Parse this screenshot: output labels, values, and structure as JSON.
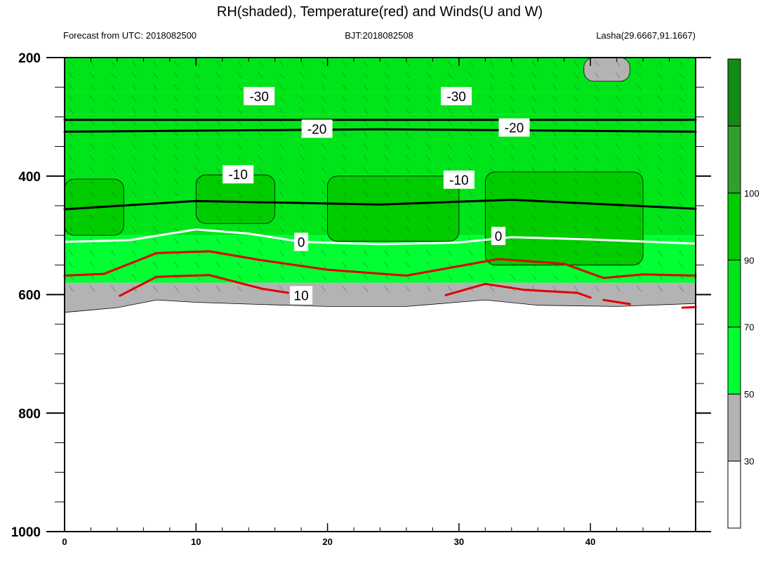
{
  "chart_data": {
    "type": "heatmap",
    "title": "RH(shaded), Temperature(red) and Winds(U and W)",
    "subtitle_left": "Forecast from UTC: 2018082500",
    "subtitle_center": "BJT:2018082508",
    "subtitle_right": "Lasha(29.6667,91.1667)",
    "x_range": [
      0,
      48
    ],
    "y_range": [
      200,
      1000
    ],
    "y_inverted": true,
    "x_ticks": [
      0,
      10,
      20,
      30,
      40
    ],
    "x_tick_labels": [
      "0",
      "10",
      "20",
      "30",
      "40"
    ],
    "y_ticks": [
      200,
      400,
      600,
      800,
      1000
    ],
    "y_tick_labels": [
      "200",
      "400",
      "600",
      "800",
      "1000"
    ],
    "colorbar": {
      "levels": [
        30,
        50,
        70,
        90,
        100
      ],
      "labels": [
        "30",
        "50",
        "70",
        "90",
        "100"
      ],
      "colors": [
        "#ffffff",
        "#b3b3b3",
        "#00ff33",
        "#00e51a",
        "#00cc00",
        "#2ea02e",
        "#138a13"
      ]
    },
    "rh_layers": [
      {
        "rh": 80,
        "top": 200,
        "bottom": 258
      },
      {
        "rh": 85,
        "top": 258,
        "bottom": 295
      },
      {
        "rh": 75,
        "top": 295,
        "bottom": 500
      },
      {
        "rh": 65,
        "top": 500,
        "bottom": 580
      },
      {
        "rh": 40,
        "top": 580,
        "bottom": 630
      }
    ],
    "rh_patches": [
      {
        "rh": 95,
        "x": [
          0,
          4.5
        ],
        "p": [
          405,
          500
        ]
      },
      {
        "rh": 95,
        "x": [
          10,
          16
        ],
        "p": [
          398,
          480
        ]
      },
      {
        "rh": 95,
        "x": [
          20,
          30
        ],
        "p": [
          400,
          510
        ]
      },
      {
        "rh": 95,
        "x": [
          32,
          44
        ],
        "p": [
          393,
          550
        ]
      },
      {
        "rh": 35,
        "x": [
          39.5,
          43
        ],
        "p": [
          200,
          240
        ]
      }
    ],
    "surface_pressure": [
      {
        "x": 0,
        "p": 630
      },
      {
        "x": 4,
        "p": 622
      },
      {
        "x": 7,
        "p": 609
      },
      {
        "x": 10,
        "p": 613
      },
      {
        "x": 14,
        "p": 616
      },
      {
        "x": 20,
        "p": 620
      },
      {
        "x": 26,
        "p": 620
      },
      {
        "x": 32,
        "p": 609
      },
      {
        "x": 36,
        "p": 618
      },
      {
        "x": 42,
        "p": 620
      },
      {
        "x": 48,
        "p": 615
      }
    ],
    "temperature_contours": [
      {
        "label": "-30",
        "color": "#000000",
        "points": [
          {
            "x": 0,
            "p": 305
          },
          {
            "x": 48,
            "p": 305
          }
        ]
      },
      {
        "label": "-20",
        "color": "#000000",
        "points": [
          {
            "x": 0,
            "p": 325
          },
          {
            "x": 24,
            "p": 321
          },
          {
            "x": 48,
            "p": 325
          }
        ]
      },
      {
        "label": "-10",
        "color": "#000000",
        "points": [
          {
            "x": 0,
            "p": 456
          },
          {
            "x": 10,
            "p": 442
          },
          {
            "x": 24,
            "p": 448
          },
          {
            "x": 34,
            "p": 440
          },
          {
            "x": 48,
            "p": 455
          }
        ]
      },
      {
        "label": "0",
        "color": "#ffffff",
        "points": [
          {
            "x": 0,
            "p": 511
          },
          {
            "x": 5,
            "p": 508
          },
          {
            "x": 10,
            "p": 490
          },
          {
            "x": 14,
            "p": 497
          },
          {
            "x": 18,
            "p": 511
          },
          {
            "x": 24,
            "p": 515
          },
          {
            "x": 30,
            "p": 512
          },
          {
            "x": 34,
            "p": 503
          },
          {
            "x": 40,
            "p": 507
          },
          {
            "x": 48,
            "p": 514
          }
        ]
      },
      {
        "label": "",
        "color": "#e00000",
        "points": [
          {
            "x": 0,
            "p": 568
          },
          {
            "x": 3,
            "p": 565
          },
          {
            "x": 7,
            "p": 530
          },
          {
            "x": 11,
            "p": 527
          },
          {
            "x": 15,
            "p": 542
          },
          {
            "x": 20,
            "p": 558
          },
          {
            "x": 26,
            "p": 568
          },
          {
            "x": 30,
            "p": 552
          },
          {
            "x": 33,
            "p": 540
          },
          {
            "x": 38,
            "p": 548
          },
          {
            "x": 41,
            "p": 572
          },
          {
            "x": 44,
            "p": 566
          },
          {
            "x": 48,
            "p": 568
          }
        ]
      },
      {
        "label": "10",
        "color": "#e00000",
        "points": [
          {
            "x": 4.2,
            "p": 602
          },
          {
            "x": 7,
            "p": 570
          },
          {
            "x": 11,
            "p": 567
          },
          {
            "x": 15,
            "p": 590
          },
          {
            "x": 17,
            "p": 597
          }
        ]
      },
      {
        "label": "",
        "color": "#e00000",
        "points": [
          {
            "x": 29,
            "p": 601
          },
          {
            "x": 32,
            "p": 582
          },
          {
            "x": 35,
            "p": 592
          },
          {
            "x": 39,
            "p": 597
          },
          {
            "x": 40,
            "p": 605
          }
        ]
      },
      {
        "label": "",
        "color": "#e00000",
        "points": [
          {
            "x": 41,
            "p": 609
          },
          {
            "x": 43,
            "p": 616
          }
        ]
      },
      {
        "label": "",
        "color": "#e00000",
        "points": [
          {
            "x": 47,
            "p": 622
          },
          {
            "x": 48,
            "p": 621
          }
        ]
      }
    ],
    "contour_labels": [
      {
        "text": "-30",
        "x": 14.8,
        "p": 265
      },
      {
        "text": "-30",
        "x": 29.8,
        "p": 265
      },
      {
        "text": "-20",
        "x": 19.2,
        "p": 320
      },
      {
        "text": "-20",
        "x": 34.2,
        "p": 318
      },
      {
        "text": "-10",
        "x": 13.2,
        "p": 397
      },
      {
        "text": "-10",
        "x": 30.0,
        "p": 406
      },
      {
        "text": "0",
        "x": 18.0,
        "p": 511
      },
      {
        "text": "0",
        "x": 33.0,
        "p": 501
      },
      {
        "text": "10",
        "x": 18.0,
        "p": 601
      }
    ]
  }
}
